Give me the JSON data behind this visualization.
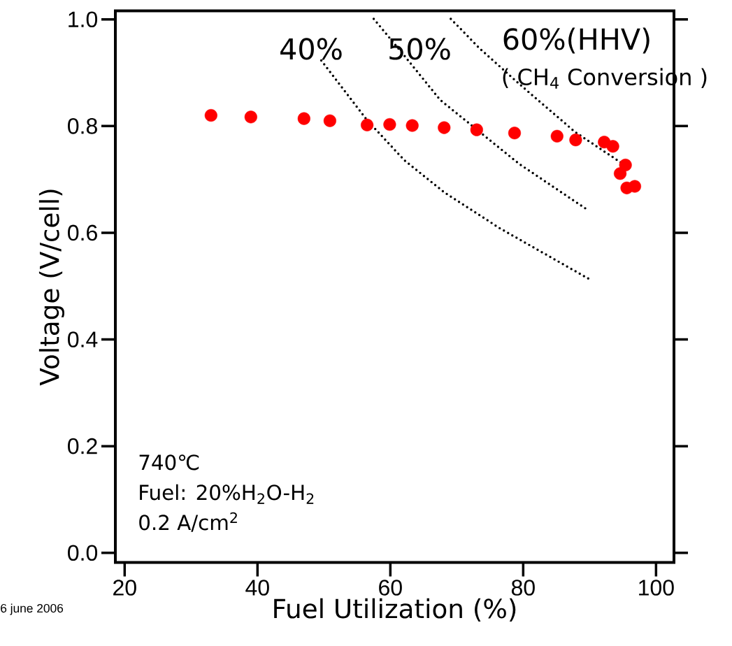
{
  "chart_data": {
    "type": "scatter",
    "xlabel": "Fuel Utilization (%)",
    "ylabel": "Voltage (V/cell)",
    "xlim": [
      18.6,
      102.7
    ],
    "ylim": [
      -0.018,
      1.016
    ],
    "xticks": [
      20,
      40,
      60,
      80,
      100
    ],
    "yticks": [
      {
        "value": 0,
        "label": "0.0"
      },
      0.2,
      0.4,
      0.6,
      0.8,
      {
        "value": 1,
        "label": "1.0"
      }
    ],
    "grid": false,
    "series": [
      {
        "color": "#ff0000",
        "marker": "circle",
        "x": [
          33.0,
          39.0,
          47.0,
          50.9,
          56.5,
          59.9,
          63.3,
          68.1,
          73.0,
          78.7,
          85.1,
          87.9,
          92.2,
          93.5,
          95.4,
          94.6,
          95.6,
          96.8
        ],
        "values": [
          0.82,
          0.817,
          0.814,
          0.81,
          0.802,
          0.803,
          0.801,
          0.797,
          0.793,
          0.787,
          0.781,
          0.774,
          0.77,
          0.762,
          0.727,
          0.711,
          0.684,
          0.687
        ]
      },
      {
        "type": "line",
        "color": "#000000",
        "marker": "none",
        "line_style": "dotted",
        "x": [
          49.6,
          56.5,
          62.1,
          68.1,
          76.4,
          90.1
        ],
        "values": [
          0.923,
          0.811,
          0.736,
          0.676,
          0.609,
          0.512
        ]
      },
      {
        "type": "line",
        "color": "#000000",
        "marker": "none",
        "line_style": "dotted",
        "x": [
          57.5,
          62.1,
          67.5,
          79.4,
          89.8
        ],
        "values": [
          1.001,
          0.932,
          0.849,
          0.729,
          0.642
        ]
      },
      {
        "type": "line",
        "color": "#000000",
        "marker": "none",
        "line_style": "dotted",
        "x": [
          69.1,
          73.4,
          79.4,
          87.8,
          95.5
        ],
        "values": [
          1.001,
          0.946,
          0.879,
          0.789,
          0.725
        ]
      }
    ],
    "annotations": [
      "40%",
      "50%",
      "60%(HHV)",
      "( CH$_{4}$ Conversion )",
      "740℃",
      "Fuel: 20%H$_{2}$O-H$_{2}$",
      "0.2 A/cm$^{2}$",
      "6 june 2006"
    ]
  }
}
